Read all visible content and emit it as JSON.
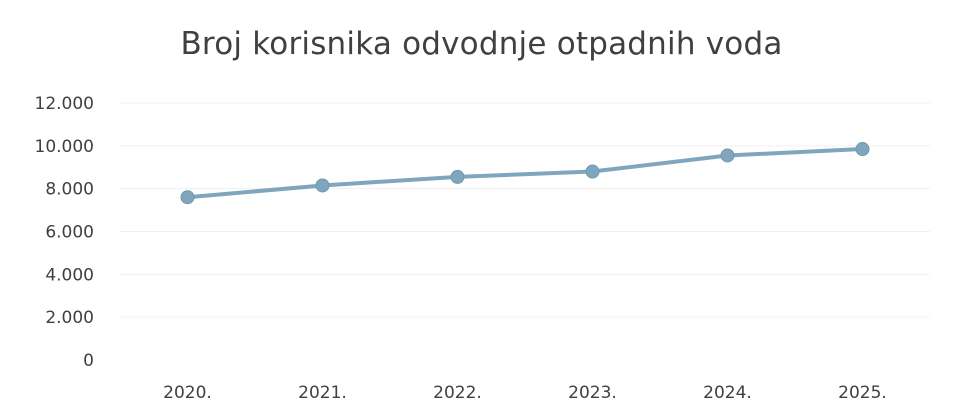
{
  "chart_data": {
    "type": "line",
    "title": "Broj korisnika odvodnje otpadnih voda",
    "xlabel": "",
    "ylabel": "",
    "categories": [
      "2020.",
      "2021.",
      "2022.",
      "2023.",
      "2024.",
      "2025."
    ],
    "series": [
      {
        "values": [
          7600,
          8150,
          8550,
          8800,
          9550,
          9850
        ],
        "color": "#7fa6bd"
      }
    ],
    "ylim": [
      0,
      12000
    ],
    "yticks": [
      0,
      2000,
      4000,
      6000,
      8000,
      10000,
      12000
    ],
    "ytick_labels": [
      "0",
      "2.000",
      "4.000",
      "6.000",
      "8.000",
      "10.000",
      "12.000"
    ],
    "grid": true,
    "legend": "none"
  }
}
